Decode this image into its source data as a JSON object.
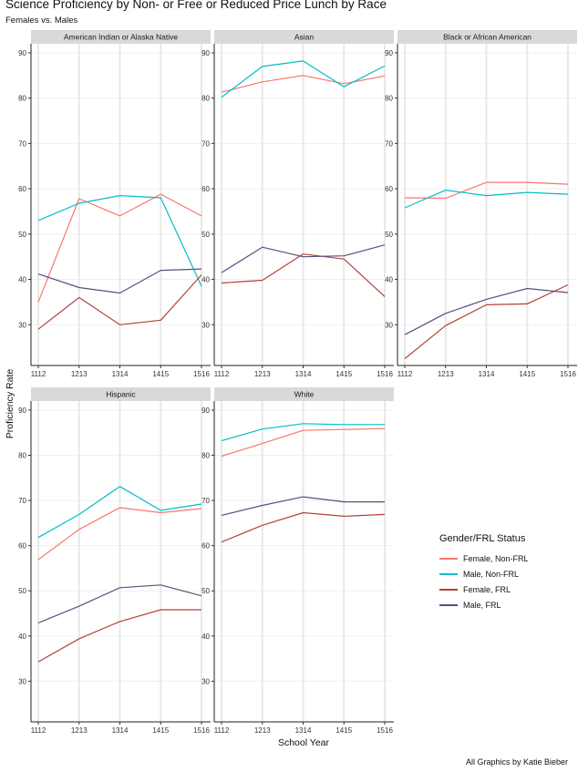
{
  "title": "Science Proficiency by Non- or Free or Reduced Price Lunch by Race",
  "subtitle": "Females vs. Males",
  "credit": "All Graphics by Katie Bieber",
  "legend": {
    "title": "Gender/FRL Status",
    "items": [
      {
        "label": "Female, Non-FRL",
        "color": "#f8766d"
      },
      {
        "label": "Male, Non-FRL",
        "color": "#00bfc4"
      },
      {
        "label": "Female, FRL",
        "color": "#b5413a"
      },
      {
        "label": "Male, FRL",
        "color": "#5b4f7e"
      }
    ]
  },
  "chart_data": {
    "type": "line",
    "facet_type": "small-multiples",
    "xlabel": "School Year",
    "ylabel": "Proficiency Rate",
    "x": [
      "1112",
      "1213",
      "1314",
      "1415",
      "1516"
    ],
    "yticks": [
      30,
      40,
      50,
      60,
      70,
      80,
      90
    ],
    "ylim": [
      21,
      92
    ],
    "grid": true,
    "legend_position": "right",
    "panels": [
      {
        "title": "American Indian or Alaska Native",
        "series": [
          {
            "name": "Female, Non-FRL",
            "values": [
              35,
              57.8,
              54,
              58.8,
              54
            ]
          },
          {
            "name": "Male, Non-FRL",
            "values": [
              53,
              56.8,
              58.5,
              58,
              38.5
            ]
          },
          {
            "name": "Female, FRL",
            "values": [
              29,
              36,
              30,
              31,
              41
            ]
          },
          {
            "name": "Male, FRL",
            "values": [
              41.2,
              38.2,
              37,
              42,
              42.3
            ]
          }
        ]
      },
      {
        "title": "Asian",
        "series": [
          {
            "name": "Female, Non-FRL",
            "values": [
              81.3,
              83.6,
              85,
              83.2,
              84.9
            ]
          },
          {
            "name": "Male, Non-FRL",
            "values": [
              80.2,
              87,
              88.2,
              82.5,
              87.1
            ]
          },
          {
            "name": "Female, FRL",
            "values": [
              39.2,
              39.8,
              45.6,
              44.5,
              36.2
            ]
          },
          {
            "name": "Male, FRL",
            "values": [
              41.5,
              47.1,
              45,
              45.2,
              47.6
            ]
          }
        ]
      },
      {
        "title": "Black or African American",
        "series": [
          {
            "name": "Female, Non-FRL",
            "values": [
              58,
              57.9,
              61.4,
              61.4,
              61
            ]
          },
          {
            "name": "Male, Non-FRL",
            "values": [
              55.8,
              59.7,
              58.5,
              59.2,
              58.8
            ]
          },
          {
            "name": "Female, FRL",
            "values": [
              22.5,
              29.8,
              34.4,
              34.6,
              38.8
            ]
          },
          {
            "name": "Male, FRL",
            "values": [
              27.8,
              32.5,
              35.6,
              38,
              37.1
            ]
          }
        ]
      },
      {
        "title": "Hispanic",
        "series": [
          {
            "name": "Female, Non-FRL",
            "values": [
              56.9,
              63.6,
              68.4,
              67.3,
              68.2
            ]
          },
          {
            "name": "Male, Non-FRL",
            "values": [
              61.8,
              66.9,
              73.1,
              67.8,
              69.2
            ]
          },
          {
            "name": "Female, FRL",
            "values": [
              34.3,
              39.4,
              43.2,
              45.8,
              45.8
            ]
          },
          {
            "name": "Male, FRL",
            "values": [
              42.9,
              46.6,
              50.7,
              51.3,
              48.9
            ]
          }
        ]
      },
      {
        "title": "White",
        "series": [
          {
            "name": "Female, Non-FRL",
            "values": [
              79.8,
              82.6,
              85.5,
              85.7,
              85.9
            ]
          },
          {
            "name": "Male, Non-FRL",
            "values": [
              83.2,
              85.8,
              87,
              86.8,
              86.8
            ]
          },
          {
            "name": "Female, FRL",
            "values": [
              60.8,
              64.5,
              67.3,
              66.5,
              66.9
            ]
          },
          {
            "name": "Male, FRL",
            "values": [
              66.7,
              68.9,
              70.8,
              69.7,
              69.7
            ]
          }
        ]
      }
    ]
  }
}
